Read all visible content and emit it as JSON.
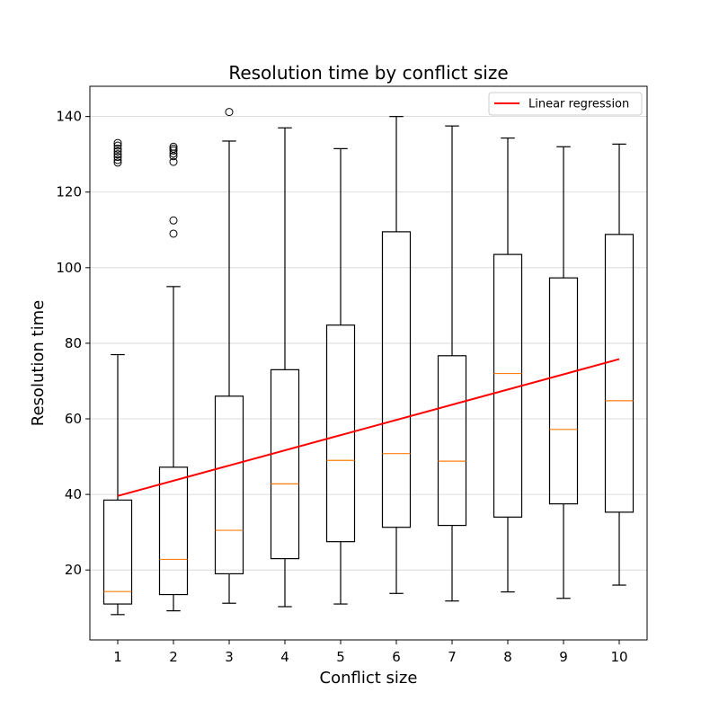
{
  "chart_data": {
    "type": "boxplot",
    "title": "Resolution time by conflict size",
    "xlabel": "Conflict size",
    "ylabel": "Resolution time",
    "categories": [
      "1",
      "2",
      "3",
      "4",
      "5",
      "6",
      "7",
      "8",
      "9",
      "10"
    ],
    "xlim": [
      0.5,
      10.5
    ],
    "ylim": [
      1.5,
      148
    ],
    "yticks": [
      20,
      40,
      60,
      80,
      100,
      120,
      140
    ],
    "grid": "horizontal",
    "legend": {
      "placement": "top-right",
      "entries": [
        "Linear regression"
      ]
    },
    "colors": {
      "box": "#000000",
      "median": "#ff7f0e",
      "regression": "#ff0000",
      "grid": "#d3d3d3"
    },
    "boxes": [
      {
        "category": "1",
        "whisker_low": 8.2,
        "q1": 11.0,
        "median": 14.3,
        "q3": 38.5,
        "whisker_high": 77.0,
        "outliers": [
          127.8,
          128.5,
          129.3,
          130.0,
          130.8,
          131.5,
          132.3,
          133.0
        ]
      },
      {
        "category": "2",
        "whisker_low": 9.2,
        "q1": 13.5,
        "median": 22.8,
        "q3": 47.2,
        "whisker_high": 95.0,
        "outliers": [
          109.0,
          112.5,
          128.0,
          129.5,
          130.2,
          131.0,
          131.5,
          132.0
        ]
      },
      {
        "category": "3",
        "whisker_low": 11.2,
        "q1": 19.0,
        "median": 30.5,
        "q3": 66.0,
        "whisker_high": 133.5,
        "outliers": [
          141.2
        ]
      },
      {
        "category": "4",
        "whisker_low": 10.3,
        "q1": 23.0,
        "median": 42.8,
        "q3": 73.0,
        "whisker_high": 137.0,
        "outliers": []
      },
      {
        "category": "5",
        "whisker_low": 11.0,
        "q1": 27.5,
        "median": 49.0,
        "q3": 84.8,
        "whisker_high": 131.5,
        "outliers": []
      },
      {
        "category": "6",
        "whisker_low": 13.8,
        "q1": 31.3,
        "median": 50.8,
        "q3": 109.5,
        "whisker_high": 140.0,
        "outliers": []
      },
      {
        "category": "7",
        "whisker_low": 11.8,
        "q1": 31.8,
        "median": 48.8,
        "q3": 76.7,
        "whisker_high": 137.5,
        "outliers": []
      },
      {
        "category": "8",
        "whisker_low": 14.2,
        "q1": 34.0,
        "median": 72.0,
        "q3": 103.5,
        "whisker_high": 134.3,
        "outliers": []
      },
      {
        "category": "9",
        "whisker_low": 12.5,
        "q1": 37.5,
        "median": 57.2,
        "q3": 97.3,
        "whisker_high": 132.0,
        "outliers": []
      },
      {
        "category": "10",
        "whisker_low": 16.0,
        "q1": 35.3,
        "median": 64.8,
        "q3": 108.8,
        "whisker_high": 132.7,
        "outliers": []
      }
    ],
    "regression": {
      "name": "Linear regression",
      "x": [
        1,
        10
      ],
      "y": [
        39.6,
        75.8
      ]
    }
  }
}
